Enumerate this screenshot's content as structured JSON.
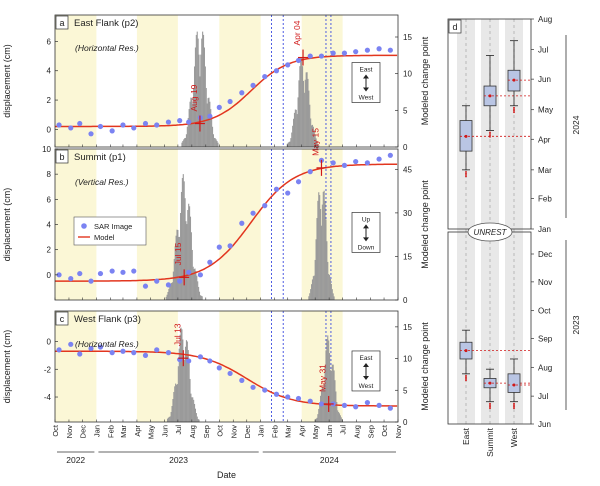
{
  "chart_data": [
    {
      "panel": "a",
      "type": "line",
      "title": "East Flank (p2)",
      "subtitle": "(Horizontal Res.)",
      "ylabel": "displacement (cm)",
      "y2label": "Modeled change point",
      "ylim": [
        -1.2,
        7.8
      ],
      "yticks": [
        0,
        2,
        4,
        6
      ],
      "y2lim": [
        0,
        18
      ],
      "y2ticks": [
        0,
        5,
        10,
        15
      ],
      "xlim": [
        "2022-10-01",
        "2024-11-01"
      ],
      "direction_labels": [
        "East",
        "West"
      ],
      "changepoints": [
        {
          "date": "2023-08-19",
          "label": "Aug 19",
          "y": 0.4
        },
        {
          "date": "2024-04-04",
          "label": "Apr 04",
          "y": 4.9
        }
      ],
      "blue_dotted_lines": [
        "2024-01-25",
        "2024-02-20",
        "2024-05-25",
        "2024-06-05"
      ],
      "yellow_bands": [
        [
          "2022-10-01",
          "2023-01-01"
        ],
        [
          "2023-04-01",
          "2023-07-01"
        ],
        [
          "2023-10-01",
          "2024-01-01"
        ],
        [
          "2024-04-01",
          "2024-07-01"
        ]
      ],
      "series": [
        {
          "name": "SAR Image",
          "marker": "circle",
          "x": [
            "2022-10-10",
            "2022-11-05",
            "2022-11-25",
            "2022-12-20",
            "2023-01-10",
            "2023-02-05",
            "2023-03-01",
            "2023-03-25",
            "2023-04-20",
            "2023-05-15",
            "2023-06-10",
            "2023-07-05",
            "2023-07-25",
            "2023-08-20",
            "2023-09-10",
            "2023-10-01",
            "2023-10-25",
            "2023-11-20",
            "2023-12-15",
            "2024-01-10",
            "2024-02-05",
            "2024-03-01",
            "2024-03-25",
            "2024-04-20",
            "2024-05-15",
            "2024-06-10",
            "2024-07-05",
            "2024-07-30",
            "2024-08-25",
            "2024-09-20",
            "2024-10-15"
          ],
          "values": [
            0.3,
            0.1,
            0.4,
            -0.3,
            0.2,
            -0.1,
            0.3,
            0.1,
            0.4,
            0.3,
            0.5,
            0.6,
            0.5,
            0.8,
            0.9,
            1.5,
            1.9,
            2.5,
            3.0,
            3.6,
            4.0,
            4.4,
            4.7,
            5.0,
            5.0,
            5.2,
            5.2,
            5.3,
            5.4,
            5.5,
            5.4
          ]
        },
        {
          "name": "Model",
          "curve": "sigmoid",
          "base": 0.2,
          "top": 5.05,
          "mid": "2023-12-10",
          "scale_days": 42
        }
      ],
      "histograms": [
        {
          "center": "2023-08-19",
          "peak": 17.5,
          "width_days": 40
        },
        {
          "center": "2024-04-04",
          "peak": 13,
          "width_days": 35
        }
      ]
    },
    {
      "panel": "b",
      "type": "line",
      "title": "Summit (p1)",
      "subtitle": "(Vertical Res.)",
      "ylabel": "displacement (cm)",
      "y2label": "Modeled change point",
      "ylim": [
        -2,
        10
      ],
      "yticks": [
        0,
        2,
        4,
        6,
        8,
        10
      ],
      "y2lim": [
        0,
        52
      ],
      "y2ticks": [
        0,
        15,
        30,
        45
      ],
      "xlim": [
        "2022-10-01",
        "2024-11-01"
      ],
      "direction_labels": [
        "Up",
        "Down"
      ],
      "legend": [
        "SAR Image",
        "Model"
      ],
      "changepoints": [
        {
          "date": "2023-07-15",
          "label": "Jul 15",
          "y": -0.2
        },
        {
          "date": "2024-05-15",
          "label": "May 15",
          "y": 8.5
        }
      ],
      "blue_dotted_lines": [
        "2024-01-25",
        "2024-02-20",
        "2024-05-25",
        "2024-06-05"
      ],
      "yellow_bands": [
        [
          "2022-10-01",
          "2023-01-01"
        ],
        [
          "2023-04-01",
          "2023-07-01"
        ],
        [
          "2023-10-01",
          "2024-01-01"
        ],
        [
          "2024-04-01",
          "2024-07-01"
        ]
      ],
      "series": [
        {
          "name": "SAR Image",
          "marker": "circle",
          "x": [
            "2022-10-10",
            "2022-11-05",
            "2022-11-25",
            "2022-12-20",
            "2023-01-10",
            "2023-02-05",
            "2023-03-01",
            "2023-03-25",
            "2023-04-20",
            "2023-05-15",
            "2023-06-10",
            "2023-07-05",
            "2023-07-25",
            "2023-08-20",
            "2023-09-10",
            "2023-10-01",
            "2023-10-25",
            "2023-11-20",
            "2023-12-15",
            "2024-01-10",
            "2024-02-05",
            "2024-03-01",
            "2024-03-25",
            "2024-04-20",
            "2024-05-15",
            "2024-06-10",
            "2024-07-05",
            "2024-07-30",
            "2024-08-25",
            "2024-09-20",
            "2024-10-15"
          ],
          "values": [
            0.0,
            -0.3,
            0.1,
            -0.5,
            0.1,
            0.3,
            0.2,
            0.3,
            -0.9,
            -0.5,
            -0.8,
            -0.5,
            0.2,
            0.0,
            1.0,
            2.2,
            2.3,
            4.1,
            4.9,
            5.5,
            6.8,
            6.5,
            7.4,
            8.2,
            9.1,
            8.9,
            8.7,
            9.0,
            8.9,
            9.2,
            9.5
          ]
        },
        {
          "name": "Model",
          "curve": "sigmoid",
          "base": -0.5,
          "top": 8.8,
          "mid": "2023-12-10",
          "scale_days": 48
        }
      ],
      "histograms": [
        {
          "center": "2023-07-15",
          "peak": 44,
          "width_days": 40
        },
        {
          "center": "2024-05-15",
          "peak": 45,
          "width_days": 28
        }
      ]
    },
    {
      "panel": "c",
      "type": "line",
      "title": "West Flank (p3)",
      "subtitle": "(Horizontal Res.)",
      "ylabel": "displacement (cm)",
      "y2label": "Modeled change point",
      "ylim": [
        -5.8,
        2.2
      ],
      "yticks": [
        -4,
        -2,
        0
      ],
      "y2lim": [
        0,
        17.5
      ],
      "y2ticks": [
        0,
        5,
        10,
        15
      ],
      "xlim": [
        "2022-10-01",
        "2024-11-01"
      ],
      "direction_labels": [
        "East",
        "West"
      ],
      "changepoints": [
        {
          "date": "2023-07-13",
          "label": "Jul 13",
          "y": -1.2
        },
        {
          "date": "2024-05-31",
          "label": "May 31",
          "y": -4.5
        }
      ],
      "blue_dotted_lines": [
        "2024-01-25",
        "2024-02-20",
        "2024-05-25",
        "2024-06-05"
      ],
      "yellow_bands": [
        [
          "2022-10-01",
          "2023-01-01"
        ],
        [
          "2023-04-01",
          "2023-07-01"
        ],
        [
          "2023-10-01",
          "2024-01-01"
        ],
        [
          "2024-04-01",
          "2024-07-01"
        ]
      ],
      "series": [
        {
          "name": "SAR Image",
          "marker": "circle",
          "x": [
            "2022-10-10",
            "2022-11-05",
            "2022-11-25",
            "2022-12-20",
            "2023-01-10",
            "2023-02-05",
            "2023-03-01",
            "2023-03-25",
            "2023-04-20",
            "2023-05-15",
            "2023-06-10",
            "2023-07-05",
            "2023-07-25",
            "2023-08-20",
            "2023-09-10",
            "2023-10-01",
            "2023-10-25",
            "2023-11-20",
            "2023-12-15",
            "2024-01-10",
            "2024-02-05",
            "2024-03-01",
            "2024-03-25",
            "2024-04-20",
            "2024-05-15",
            "2024-06-10",
            "2024-07-05",
            "2024-07-30",
            "2024-08-25",
            "2024-09-20",
            "2024-10-15"
          ],
          "values": [
            -0.6,
            -0.2,
            -0.9,
            -0.5,
            -0.4,
            -0.8,
            -0.7,
            -0.8,
            -1.0,
            -0.6,
            -0.8,
            -1.3,
            -1.4,
            -1.1,
            -1.4,
            -1.9,
            -2.3,
            -2.8,
            -3.3,
            -3.5,
            -3.8,
            -4.0,
            -4.1,
            -4.3,
            -4.5,
            -4.5,
            -4.6,
            -4.7,
            -4.4,
            -4.6,
            -4.8
          ]
        },
        {
          "name": "Model",
          "curve": "sigmoid",
          "base": -0.7,
          "top": -4.65,
          "mid": "2023-12-01",
          "scale_days": 50
        }
      ],
      "histograms": [
        {
          "center": "2023-07-13",
          "peak": 16,
          "width_days": 35
        },
        {
          "center": "2024-05-31",
          "peak": 14,
          "width_days": 30
        }
      ]
    },
    {
      "panel": "d",
      "type": "box",
      "categories": [
        "East",
        "Summit",
        "West"
      ],
      "yticks_2024": [
        "Jan",
        "Feb",
        "Mar",
        "Apr",
        "May",
        "Jun",
        "Jul",
        "Aug"
      ],
      "yticks_2023": [
        "Jun",
        "Jul",
        "Aug",
        "Sep",
        "Oct",
        "Nov",
        "Dec"
      ],
      "year_labels": [
        "2024",
        "2023"
      ],
      "annotation": "UNREST",
      "boxes_2024": [
        {
          "name": "East",
          "whisker_low": "2024-03-01",
          "q1": "2024-03-20",
          "median": "2024-04-04",
          "q3": "2024-04-20",
          "whisker_high": "2024-05-05"
        },
        {
          "name": "Summit",
          "whisker_low": "2024-04-10",
          "q1": "2024-05-05",
          "median": "2024-05-15",
          "q3": "2024-05-25",
          "whisker_high": "2024-06-25"
        },
        {
          "name": "West",
          "whisker_low": "2024-05-05",
          "q1": "2024-05-20",
          "median": "2024-05-31",
          "q3": "2024-06-10",
          "whisker_high": "2024-07-10"
        }
      ],
      "boxes_2023": [
        {
          "name": "East",
          "whisker_low": "2023-07-25",
          "q1": "2023-08-10",
          "median": "2023-08-19",
          "q3": "2023-08-28",
          "whisker_high": "2023-09-10"
        },
        {
          "name": "Summit",
          "whisker_low": "2023-06-25",
          "q1": "2023-07-10",
          "median": "2023-07-15",
          "q3": "2023-07-20",
          "whisker_high": "2023-07-30"
        },
        {
          "name": "West",
          "whisker_low": "2023-06-25",
          "q1": "2023-07-05",
          "median": "2023-07-13",
          "q3": "2023-07-25",
          "whisker_high": "2023-08-10"
        }
      ]
    }
  ],
  "x_axis": {
    "label": "Date",
    "months": [
      "Oct",
      "Nov",
      "Dec",
      "Jan",
      "Feb",
      "Mar",
      "Apr",
      "May",
      "Jun",
      "Jul",
      "Aug",
      "Sep",
      "Oct",
      "Nov",
      "Dec",
      "Jan",
      "Feb",
      "Mar",
      "Apr",
      "May",
      "Jun",
      "Jul",
      "Aug",
      "Sep",
      "Oct",
      "Nov"
    ],
    "years": [
      {
        "label": "2022",
        "from": "2022-10-01",
        "to": "2023-01-01"
      },
      {
        "label": "2023",
        "from": "2023-01-01",
        "to": "2024-01-01"
      },
      {
        "label": "2024",
        "from": "2024-01-01",
        "to": "2024-11-01"
      }
    ]
  },
  "colors": {
    "sar": "#7b83f2",
    "model": "#e2361f",
    "hist": "#9a9a9a",
    "yellow_band": "#fbf7d6",
    "blue_dotted": "#3c4ce0",
    "changepoint": "#d01818",
    "box_fill": "#b9c5e4",
    "box_shade": "#e8e8e8"
  }
}
